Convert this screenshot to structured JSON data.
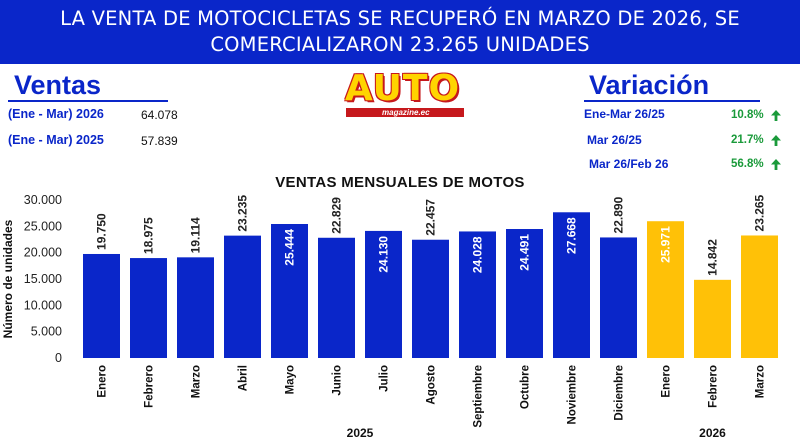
{
  "banner": {
    "line1": "LA VENTA DE MOTOCICLETAS SE RECUPERÓ EN MARZO DE 2026, SE",
    "line2": "COMERCIALIZARON 23.265 UNIDADES"
  },
  "ventas": {
    "title": "Ventas",
    "rows": [
      {
        "label": "(Ene - Mar) 2026",
        "value": "64.078"
      },
      {
        "label": "(Ene - Mar) 2025",
        "value": "57.839"
      }
    ]
  },
  "logo": {
    "brand": "AUTO",
    "tagline": "magazine.ec",
    "colors": {
      "text": "#ffd400",
      "accent": "#c6181c"
    }
  },
  "variacion": {
    "title": "Variación",
    "rows": [
      {
        "label": "Ene-Mar 26/25",
        "value": "10.8%",
        "icon": "arrow-up-icon"
      },
      {
        "label": "Mar 26/25",
        "value": "21.7%",
        "icon": "arrow-up-icon"
      },
      {
        "label": "Mar 26/Feb 26",
        "value": "56.8%",
        "icon": "arrow-up-icon"
      }
    ]
  },
  "chart_data": {
    "type": "bar",
    "title": "VENTAS MENSUALES DE MOTOS",
    "ylabel": "Número de unidades",
    "ylim": [
      0,
      30000
    ],
    "yticks": [
      "0",
      "5.000",
      "10.000",
      "15.000",
      "20.000",
      "25.000",
      "30.000"
    ],
    "grid": false,
    "categories": [
      "Enero",
      "Febrero",
      "Marzo",
      "Abril",
      "Mayo",
      "Junio",
      "Julio",
      "Agosto",
      "Septiembre",
      "Octubre",
      "Noviembre",
      "Diciembre",
      "Enero",
      "Febrero",
      "Marzo"
    ],
    "values": [
      19750,
      18975,
      19114,
      23235,
      25444,
      22829,
      24130,
      22457,
      24028,
      24491,
      27668,
      22890,
      25971,
      14842,
      23265
    ],
    "labels": [
      "19.750",
      "18.975",
      "19.114",
      "23.235",
      "25.444",
      "22.829",
      "24.130",
      "22.457",
      "24.028",
      "24.491",
      "27.668",
      "22.890",
      "25.971",
      "14.842",
      "23.265"
    ],
    "years": [
      {
        "label": "2025",
        "count": 12
      },
      {
        "label": "2026",
        "count": 3
      }
    ],
    "colors": {
      "2025": "#0a26c9",
      "2026": "#ffc107"
    }
  }
}
